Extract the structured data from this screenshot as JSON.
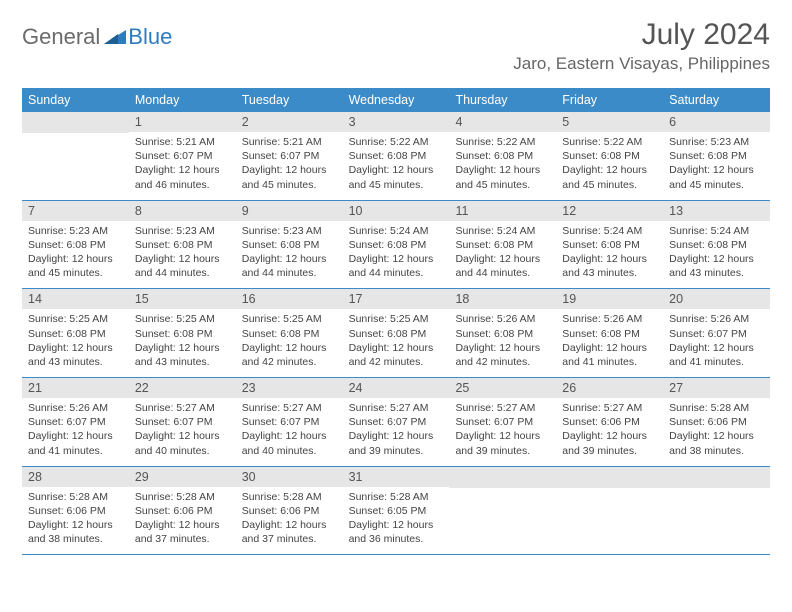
{
  "brand": {
    "word1": "General",
    "word2": "Blue"
  },
  "title": "July 2024",
  "location": "Jaro, Eastern Visayas, Philippines",
  "colors": {
    "header_bg": "#3b8bc8",
    "header_text": "#ffffff",
    "daynum_bg": "#e6e6e6",
    "border": "#3b8bc8",
    "text": "#4a4a4a",
    "brand_gray": "#6b6b6b",
    "brand_blue": "#2f7bbf"
  },
  "day_headers": [
    "Sunday",
    "Monday",
    "Tuesday",
    "Wednesday",
    "Thursday",
    "Friday",
    "Saturday"
  ],
  "weeks": [
    [
      {
        "n": "",
        "lines": []
      },
      {
        "n": "1",
        "lines": [
          "Sunrise: 5:21 AM",
          "Sunset: 6:07 PM",
          "Daylight: 12 hours",
          "and 46 minutes."
        ]
      },
      {
        "n": "2",
        "lines": [
          "Sunrise: 5:21 AM",
          "Sunset: 6:07 PM",
          "Daylight: 12 hours",
          "and 45 minutes."
        ]
      },
      {
        "n": "3",
        "lines": [
          "Sunrise: 5:22 AM",
          "Sunset: 6:08 PM",
          "Daylight: 12 hours",
          "and 45 minutes."
        ]
      },
      {
        "n": "4",
        "lines": [
          "Sunrise: 5:22 AM",
          "Sunset: 6:08 PM",
          "Daylight: 12 hours",
          "and 45 minutes."
        ]
      },
      {
        "n": "5",
        "lines": [
          "Sunrise: 5:22 AM",
          "Sunset: 6:08 PM",
          "Daylight: 12 hours",
          "and 45 minutes."
        ]
      },
      {
        "n": "6",
        "lines": [
          "Sunrise: 5:23 AM",
          "Sunset: 6:08 PM",
          "Daylight: 12 hours",
          "and 45 minutes."
        ]
      }
    ],
    [
      {
        "n": "7",
        "lines": [
          "Sunrise: 5:23 AM",
          "Sunset: 6:08 PM",
          "Daylight: 12 hours",
          "and 45 minutes."
        ]
      },
      {
        "n": "8",
        "lines": [
          "Sunrise: 5:23 AM",
          "Sunset: 6:08 PM",
          "Daylight: 12 hours",
          "and 44 minutes."
        ]
      },
      {
        "n": "9",
        "lines": [
          "Sunrise: 5:23 AM",
          "Sunset: 6:08 PM",
          "Daylight: 12 hours",
          "and 44 minutes."
        ]
      },
      {
        "n": "10",
        "lines": [
          "Sunrise: 5:24 AM",
          "Sunset: 6:08 PM",
          "Daylight: 12 hours",
          "and 44 minutes."
        ]
      },
      {
        "n": "11",
        "lines": [
          "Sunrise: 5:24 AM",
          "Sunset: 6:08 PM",
          "Daylight: 12 hours",
          "and 44 minutes."
        ]
      },
      {
        "n": "12",
        "lines": [
          "Sunrise: 5:24 AM",
          "Sunset: 6:08 PM",
          "Daylight: 12 hours",
          "and 43 minutes."
        ]
      },
      {
        "n": "13",
        "lines": [
          "Sunrise: 5:24 AM",
          "Sunset: 6:08 PM",
          "Daylight: 12 hours",
          "and 43 minutes."
        ]
      }
    ],
    [
      {
        "n": "14",
        "lines": [
          "Sunrise: 5:25 AM",
          "Sunset: 6:08 PM",
          "Daylight: 12 hours",
          "and 43 minutes."
        ]
      },
      {
        "n": "15",
        "lines": [
          "Sunrise: 5:25 AM",
          "Sunset: 6:08 PM",
          "Daylight: 12 hours",
          "and 43 minutes."
        ]
      },
      {
        "n": "16",
        "lines": [
          "Sunrise: 5:25 AM",
          "Sunset: 6:08 PM",
          "Daylight: 12 hours",
          "and 42 minutes."
        ]
      },
      {
        "n": "17",
        "lines": [
          "Sunrise: 5:25 AM",
          "Sunset: 6:08 PM",
          "Daylight: 12 hours",
          "and 42 minutes."
        ]
      },
      {
        "n": "18",
        "lines": [
          "Sunrise: 5:26 AM",
          "Sunset: 6:08 PM",
          "Daylight: 12 hours",
          "and 42 minutes."
        ]
      },
      {
        "n": "19",
        "lines": [
          "Sunrise: 5:26 AM",
          "Sunset: 6:08 PM",
          "Daylight: 12 hours",
          "and 41 minutes."
        ]
      },
      {
        "n": "20",
        "lines": [
          "Sunrise: 5:26 AM",
          "Sunset: 6:07 PM",
          "Daylight: 12 hours",
          "and 41 minutes."
        ]
      }
    ],
    [
      {
        "n": "21",
        "lines": [
          "Sunrise: 5:26 AM",
          "Sunset: 6:07 PM",
          "Daylight: 12 hours",
          "and 41 minutes."
        ]
      },
      {
        "n": "22",
        "lines": [
          "Sunrise: 5:27 AM",
          "Sunset: 6:07 PM",
          "Daylight: 12 hours",
          "and 40 minutes."
        ]
      },
      {
        "n": "23",
        "lines": [
          "Sunrise: 5:27 AM",
          "Sunset: 6:07 PM",
          "Daylight: 12 hours",
          "and 40 minutes."
        ]
      },
      {
        "n": "24",
        "lines": [
          "Sunrise: 5:27 AM",
          "Sunset: 6:07 PM",
          "Daylight: 12 hours",
          "and 39 minutes."
        ]
      },
      {
        "n": "25",
        "lines": [
          "Sunrise: 5:27 AM",
          "Sunset: 6:07 PM",
          "Daylight: 12 hours",
          "and 39 minutes."
        ]
      },
      {
        "n": "26",
        "lines": [
          "Sunrise: 5:27 AM",
          "Sunset: 6:06 PM",
          "Daylight: 12 hours",
          "and 39 minutes."
        ]
      },
      {
        "n": "27",
        "lines": [
          "Sunrise: 5:28 AM",
          "Sunset: 6:06 PM",
          "Daylight: 12 hours",
          "and 38 minutes."
        ]
      }
    ],
    [
      {
        "n": "28",
        "lines": [
          "Sunrise: 5:28 AM",
          "Sunset: 6:06 PM",
          "Daylight: 12 hours",
          "and 38 minutes."
        ]
      },
      {
        "n": "29",
        "lines": [
          "Sunrise: 5:28 AM",
          "Sunset: 6:06 PM",
          "Daylight: 12 hours",
          "and 37 minutes."
        ]
      },
      {
        "n": "30",
        "lines": [
          "Sunrise: 5:28 AM",
          "Sunset: 6:06 PM",
          "Daylight: 12 hours",
          "and 37 minutes."
        ]
      },
      {
        "n": "31",
        "lines": [
          "Sunrise: 5:28 AM",
          "Sunset: 6:05 PM",
          "Daylight: 12 hours",
          "and 36 minutes."
        ]
      },
      {
        "n": "",
        "lines": []
      },
      {
        "n": "",
        "lines": []
      },
      {
        "n": "",
        "lines": []
      }
    ]
  ]
}
